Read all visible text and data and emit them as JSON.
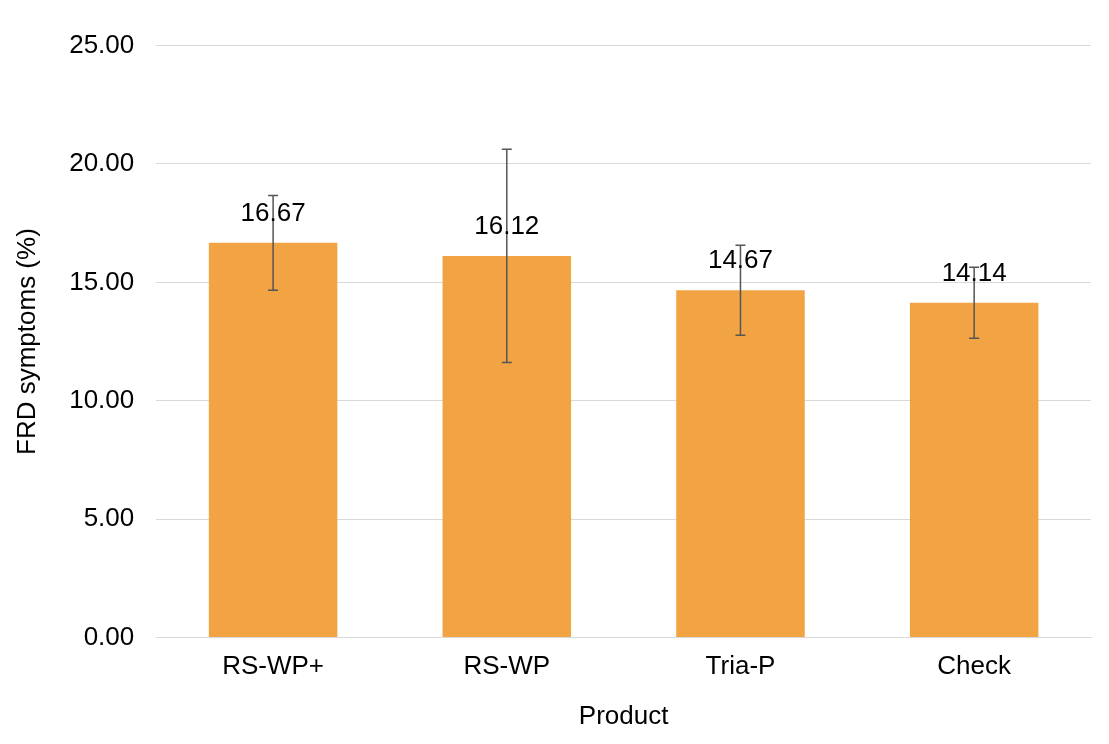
{
  "chart_data": {
    "type": "bar",
    "xlabel": "Product",
    "ylabel": "FRD symptoms (%)",
    "categories": [
      "RS-WP+",
      "RS-WP",
      "Tria-P",
      "Check"
    ],
    "values": [
      16.67,
      16.12,
      14.67,
      14.14
    ],
    "errors": [
      2.0,
      4.5,
      1.9,
      1.5
    ],
    "color": "#f2a444",
    "data_labels": true,
    "grid": "y",
    "legend": false,
    "ylim": [
      0,
      25
    ],
    "yticks": [
      {
        "value": 0,
        "label": "0.00"
      },
      {
        "value": 5,
        "label": "5.00"
      },
      {
        "value": 10,
        "label": "10.00"
      },
      {
        "value": 15,
        "label": "15.00"
      },
      {
        "value": 20,
        "label": "20.00"
      },
      {
        "value": 25,
        "label": "25.00"
      }
    ]
  }
}
